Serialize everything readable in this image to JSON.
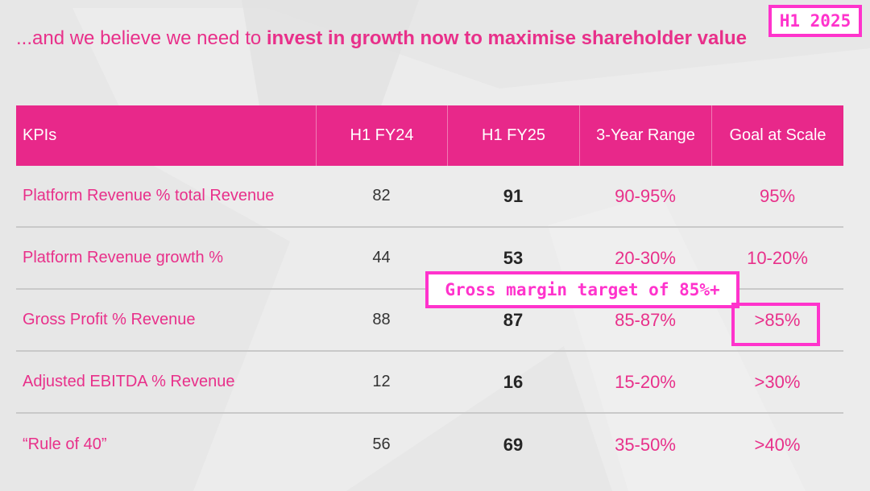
{
  "headline": {
    "regular": "...and we believe we need to ",
    "bold": "invest in growth now to maximise shareholder value"
  },
  "badge": "H1 2025",
  "table": {
    "columns": [
      "KPIs",
      "H1 FY24",
      "H1 FY25",
      "3-Year Range",
      "Goal at Scale"
    ],
    "rows": [
      {
        "kpi": "Platform Revenue % total Revenue",
        "fy24": "82",
        "fy25": "91",
        "range": "90-95%",
        "goal": "95%"
      },
      {
        "kpi": "Platform Revenue growth %",
        "fy24": "44",
        "fy25": "53",
        "range": "20-30%",
        "goal": "10-20%"
      },
      {
        "kpi": "Gross Profit % Revenue",
        "fy24": "88",
        "fy25": "87",
        "range": "85-87%",
        "goal": ">85%"
      },
      {
        "kpi": "Adjusted EBITDA % Revenue",
        "fy24": "12",
        "fy25": "16",
        "range": "15-20%",
        "goal": ">30%"
      },
      {
        "kpi": "“Rule of 40”",
        "fy24": "56",
        "fy25": "69",
        "range": "35-50%",
        "goal": ">40%"
      }
    ]
  },
  "callout": "Gross margin target of 85%+",
  "colors": {
    "brand_pink": "#e8288a",
    "annotation_magenta": "#ff33cc",
    "background": "#e7e7e7"
  }
}
